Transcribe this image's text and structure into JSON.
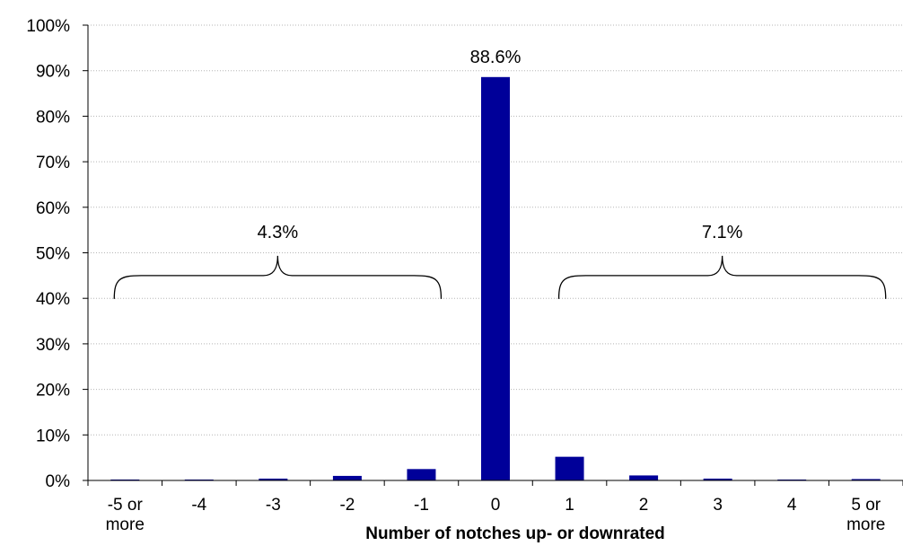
{
  "chart_data": {
    "type": "bar",
    "title": "",
    "xlabel": "Number of notches up- or downrated",
    "ylabel": "",
    "ylim": [
      0,
      100
    ],
    "yticks": [
      0,
      10,
      20,
      30,
      40,
      50,
      60,
      70,
      80,
      90,
      100
    ],
    "ytick_labels": [
      "0%",
      "10%",
      "20%",
      "30%",
      "40%",
      "50%",
      "60%",
      "70%",
      "80%",
      "90%",
      "100%"
    ],
    "grid": true,
    "legend": "none",
    "categories": [
      [
        "-5 or",
        "more"
      ],
      [
        "-4"
      ],
      [
        "-3"
      ],
      [
        "-2"
      ],
      [
        "-1"
      ],
      [
        "0"
      ],
      [
        "1"
      ],
      [
        "2"
      ],
      [
        "3"
      ],
      [
        "4"
      ],
      [
        "5 or",
        "more"
      ]
    ],
    "values": [
      0.2,
      0.1,
      0.4,
      1.0,
      2.5,
      88.6,
      5.2,
      1.1,
      0.4,
      0.1,
      0.3
    ],
    "bar_color": "#000099",
    "annotations": [
      {
        "label": "88.6%",
        "category_index": 5
      },
      {
        "label": "4.3%",
        "category_from": 0,
        "category_to": 4,
        "bracket_level": 45
      },
      {
        "label": "7.1%",
        "category_from": 6,
        "category_to": 10,
        "bracket_level": 45
      }
    ]
  }
}
